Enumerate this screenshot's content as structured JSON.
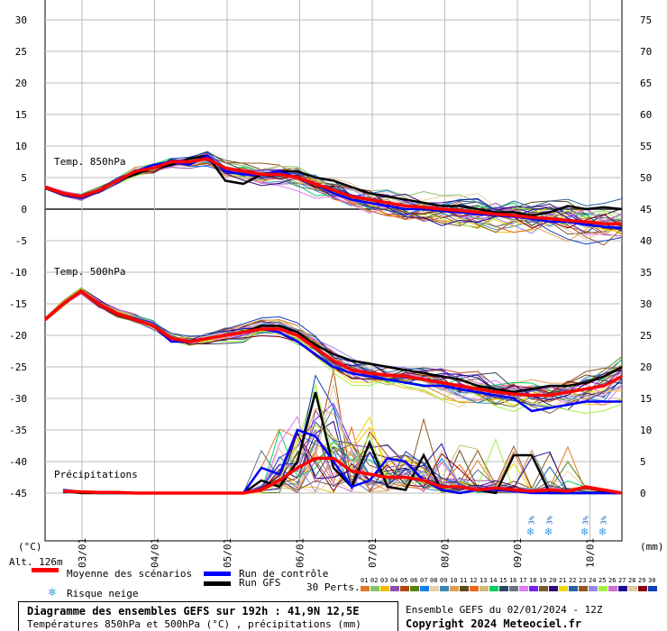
{
  "chart_data": {
    "type": "line",
    "title": "Diagramme des ensembles GEFS sur 192h : 41,9N 12,5E",
    "subtitle": "Températures 850hPa et 500hPa (°C) , précipitations (mm)",
    "left_axis": {
      "label": "(°C)",
      "range": [
        -45,
        30
      ],
      "ticks": [
        30,
        25,
        20,
        15,
        10,
        5,
        0,
        -5,
        -10,
        -15,
        -20,
        -25,
        -30,
        -35,
        -40,
        -45
      ]
    },
    "right_axis": {
      "label": "(mm)",
      "range": [
        0,
        75
      ],
      "ticks": [
        75,
        70,
        65,
        60,
        55,
        50,
        45,
        40,
        35,
        30,
        25,
        20,
        15,
        10,
        5,
        0
      ]
    },
    "x_ticks": [
      "03/01",
      "04/01",
      "05/01",
      "06/01",
      "07/01",
      "08/01",
      "09/01",
      "10/01"
    ],
    "annotations": {
      "t850": "Temp. 850hPa",
      "t500": "Temp. 500hPa",
      "precip": "Précipitations",
      "alt": "Alt. 126m",
      "snow_label": "3%"
    },
    "snow_steps": [
      27,
      28,
      30,
      31
    ],
    "series": [
      {
        "name": "Moyenne des scénarios",
        "kind": "t850",
        "color": "#ff0000",
        "values": [
          3.5,
          2.5,
          2,
          3,
          4.5,
          6,
          6.5,
          7.5,
          7.5,
          8,
          6.5,
          6,
          5.5,
          5.5,
          5,
          4,
          3,
          2,
          1.5,
          1,
          0.5,
          0.3,
          0,
          -0.2,
          -0.5,
          -0.8,
          -1,
          -1.3,
          -1.5,
          -1.8,
          -2,
          -2.3,
          -2.3
        ]
      },
      {
        "name": "Moyenne des scénarios",
        "kind": "t500",
        "color": "#ff0000",
        "values": [
          -17.5,
          -15,
          -13,
          -15,
          -16.5,
          -17.5,
          -18.5,
          -20.5,
          -21,
          -20.5,
          -20,
          -19.5,
          -19,
          -19,
          -20,
          -22,
          -24,
          -25.5,
          -26,
          -26.3,
          -26.5,
          -27,
          -27.5,
          -28,
          -28.5,
          -29,
          -29.3,
          -29.5,
          -29.5,
          -29,
          -28.5,
          -28,
          -26.5
        ]
      },
      {
        "name": "Moyenne des scénarios",
        "kind": "precip",
        "color": "#ff0000",
        "values": [
          null,
          0.3,
          0.2,
          0.1,
          0.1,
          0,
          0,
          0,
          0,
          0,
          0,
          0,
          0.5,
          2,
          4,
          5.5,
          5.5,
          3.5,
          3,
          2.5,
          2.5,
          2,
          1,
          1,
          0.5,
          0.8,
          0.5,
          0.3,
          0.5,
          0.3,
          1,
          0.5,
          0
        ]
      },
      {
        "name": "Run de contrôle",
        "kind": "t850",
        "color": "#0000ff",
        "values": [
          3.5,
          2.5,
          1.8,
          3,
          4.5,
          6,
          7,
          7.5,
          7,
          8.5,
          6,
          5.5,
          5.5,
          6,
          5,
          4,
          2.5,
          1.5,
          1,
          0.5,
          0,
          0,
          -0.3,
          -0.5,
          -0.8,
          -1,
          -1.2,
          -1.5,
          -2,
          -2,
          -2.5,
          -2.8,
          -3
        ]
      },
      {
        "name": "Run de contrôle",
        "kind": "t500",
        "color": "#0000ff",
        "values": [
          -17.5,
          -15,
          -13,
          -15,
          -16.5,
          -17.5,
          -18.5,
          -21,
          -21,
          -20.5,
          -20,
          -19.5,
          -19,
          -19.5,
          -21,
          -23,
          -25,
          -26,
          -26.5,
          -27,
          -27.5,
          -28,
          -28,
          -28.5,
          -29,
          -29.5,
          -30,
          -32,
          -31.5,
          -31,
          -30.5,
          -30.5,
          -30.5
        ]
      },
      {
        "name": "Run de contrôle",
        "kind": "precip",
        "color": "#0000ff",
        "values": [
          null,
          0.5,
          0.2,
          0,
          0,
          0,
          0,
          0,
          0,
          0,
          0,
          0,
          4,
          3,
          10,
          9,
          5,
          1,
          2,
          5.5,
          5,
          2,
          0.5,
          0,
          0.5,
          0.5,
          0.3,
          0,
          0,
          0,
          0,
          0,
          0
        ]
      },
      {
        "name": "Run GFS",
        "kind": "t850",
        "color": "#000000",
        "values": [
          3.5,
          2.5,
          2,
          3,
          4.5,
          5.5,
          6.5,
          7,
          8,
          8.5,
          4.5,
          4,
          5.5,
          6,
          6,
          5,
          4.5,
          3.5,
          2.5,
          2,
          1.5,
          1,
          0.5,
          0.5,
          0,
          -0.5,
          -0.5,
          -1,
          -0.5,
          0.5,
          0,
          0.3,
          0
        ]
      },
      {
        "name": "Run GFS",
        "kind": "t500",
        "color": "#000000",
        "values": [
          -17.5,
          -15,
          -13,
          -15,
          -16.5,
          -17.5,
          -18.5,
          -20.5,
          -21,
          -20.5,
          -20,
          -19.5,
          -18.5,
          -18.5,
          -19.5,
          -21.5,
          -23,
          -24,
          -24.5,
          -25,
          -25.5,
          -26,
          -26.5,
          -27,
          -28,
          -28.5,
          -29,
          -28.5,
          -28,
          -28,
          -27.5,
          -26.5,
          -25
        ]
      },
      {
        "name": "Run GFS",
        "kind": "precip",
        "color": "#000000",
        "values": [
          null,
          0.3,
          0,
          0,
          0,
          0,
          0,
          0,
          0,
          0,
          0,
          0,
          2,
          1,
          5,
          16,
          4,
          1,
          8,
          1,
          0.5,
          6,
          0.5,
          0,
          0.5,
          0,
          6,
          6,
          0,
          0,
          0,
          0,
          0
        ]
      }
    ]
  },
  "legend": {
    "mean": "Moyenne des scénarios",
    "control": "Run de contrôle",
    "gfs": "Run GFS",
    "snow": "Risque neige",
    "perts": "30 Perts."
  },
  "perturbations": {
    "labels": [
      "01",
      "02",
      "03",
      "04",
      "05",
      "06",
      "07",
      "08",
      "09",
      "10",
      "11",
      "12",
      "13",
      "14",
      "15",
      "16",
      "17",
      "18",
      "19",
      "20",
      "21",
      "22",
      "23",
      "24",
      "25",
      "26",
      "27",
      "28",
      "29",
      "30"
    ],
    "colors": [
      "#e07a2a",
      "#86c46a",
      "#f0c000",
      "#8e4fb0",
      "#b04a10",
      "#5a8010",
      "#1080f0",
      "#e6d0a8",
      "#3a8ab8",
      "#e0a050",
      "#604818",
      "#f06820",
      "#d0bc78",
      "#00d060",
      "#284860",
      "#6a7080",
      "#e078f0",
      "#7820f0",
      "#7a5830",
      "#300878",
      "#f0d800",
      "#2860a0",
      "#905820",
      "#9888e8",
      "#a0f040",
      "#d070d0",
      "#200898",
      "#e0c8a0",
      "#880010",
      "#1040c0"
    ]
  },
  "footer": {
    "run": "Ensemble GEFS du 02/01/2024 - 12Z",
    "copyright": "Copyright 2024 Meteociel.fr"
  }
}
